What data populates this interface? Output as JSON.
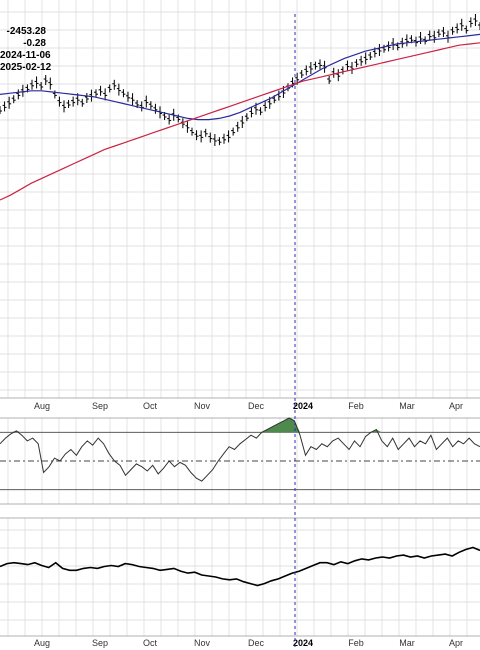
{
  "info_panel": {
    "line1": "-2453.28",
    "line2": "-0.28",
    "line3": "2024-11-06",
    "line4": "2025-02-12"
  },
  "colors": {
    "price_bars": "#000000",
    "ma_short": "#2b2b9c",
    "ma_long": "#cc2244",
    "grid": "#d8d8d8",
    "cursor": "#2b2bb0",
    "overbought_fill": "#4e8a4e",
    "oscillator": "#333333",
    "lower_line": "#000000"
  },
  "chart_data": {
    "type": "line",
    "x_ticks": [
      "Aug",
      "Sep",
      "Oct",
      "Nov",
      "Dec",
      "2024",
      "Feb",
      "Mar",
      "Apr"
    ],
    "x_tick_bold": "2024",
    "grid": true,
    "panels": [
      {
        "name": "price",
        "type": "ohlc",
        "series": [
          {
            "kind": "bars",
            "values": [
              115,
              118,
              121,
              124,
              128,
              131,
              133,
              136,
              138,
              135,
              140,
              137,
              128,
              122,
              118,
              120,
              122,
              124,
              121,
              125,
              127,
              129,
              131,
              128,
              133,
              136,
              132,
              129,
              126,
              124,
              120,
              118,
              122,
              119,
              116,
              113,
              110,
              107,
              111,
              108,
              104,
              101,
              97,
              94,
              93,
              96,
              92,
              90,
              89,
              91,
              93,
              97,
              101,
              105,
              109,
              113,
              116,
              114,
              118,
              121,
              124,
              127,
              130,
              134,
              138,
              141,
              145,
              148,
              150,
              152,
              153,
              151,
              140,
              146,
              144,
              148,
              152,
              150,
              154,
              156,
              158,
              160,
              163,
              165,
              166,
              168,
              170,
              168,
              171,
              173,
              174,
              172,
              175,
              173,
              177,
              176,
              179,
              180,
              176,
              181,
              183,
              186,
              182,
              188,
              190,
              185
            ]
          },
          {
            "kind": "ma50",
            "values": [
              128,
              129,
              130,
              131,
              131,
              130,
              129,
              128,
              127,
              126,
              124,
              122,
              120,
              118,
              116,
              114,
              112,
              110,
              108,
              107,
              107,
              108,
              110,
              113,
              117,
              121,
              125,
              130,
              135,
              140,
              145,
              150,
              154,
              158,
              161,
              164,
              166,
              168,
              170,
              171,
              172,
              173,
              174,
              175,
              176,
              177,
              178
            ]
          },
          {
            "kind": "ma200",
            "values": [
              40,
              44,
              49,
              54,
              58,
              62,
              66,
              70,
              74,
              78,
              82,
              85,
              88,
              91,
              94,
              97,
              100,
              103,
              106,
              109,
              112,
              115,
              118,
              121,
              124,
              127,
              130,
              133,
              136,
              139,
              141,
              143,
              145,
              147,
              149,
              151,
              153,
              155,
              157,
              159,
              161,
              163,
              165,
              167,
              169,
              170,
              171
            ]
          }
        ]
      },
      {
        "name": "oscillator",
        "type": "line",
        "ylim": [
          20,
          80
        ],
        "levels": [
          70,
          50,
          30
        ],
        "series": [
          {
            "values": [
              62,
              66,
              69,
              71,
              68,
              64,
              66,
              62,
              42,
              46,
              52,
              50,
              55,
              58,
              54,
              60,
              64,
              61,
              66,
              62,
              55,
              50,
              47,
              40,
              44,
              48,
              46,
              43,
              47,
              41,
              45,
              50,
              46,
              49,
              47,
              42,
              38,
              36,
              40,
              44,
              50,
              55,
              60,
              58,
              62,
              65,
              68,
              66,
              70,
              72,
              74,
              76,
              78,
              80,
              78,
              68,
              54,
              60,
              58,
              62,
              60,
              64,
              66,
              62,
              58,
              64,
              60,
              67,
              70,
              72,
              64,
              60,
              66,
              58,
              62,
              66,
              60,
              64,
              62,
              68,
              58,
              62,
              66,
              60,
              64,
              62,
              66,
              62,
              60
            ]
          }
        ]
      },
      {
        "name": "cumulative",
        "type": "line",
        "series": [
          {
            "values": [
              80,
              83,
              84,
              83,
              82,
              84,
              81,
              79,
              84,
              78,
              76,
              76,
              78,
              79,
              78,
              80,
              81,
              80,
              83,
              82,
              80,
              79,
              78,
              76,
              77,
              78,
              75,
              73,
              74,
              71,
              70,
              69,
              67,
              66,
              67,
              64,
              62,
              60,
              62,
              65,
              67,
              70,
              73,
              75,
              78,
              81,
              84,
              84,
              82,
              85,
              83,
              86,
              88,
              87,
              89,
              90,
              89,
              91,
              92,
              90,
              91,
              89,
              91,
              92,
              93,
              91,
              95,
              98,
              100,
              97
            ]
          }
        ]
      }
    ]
  }
}
